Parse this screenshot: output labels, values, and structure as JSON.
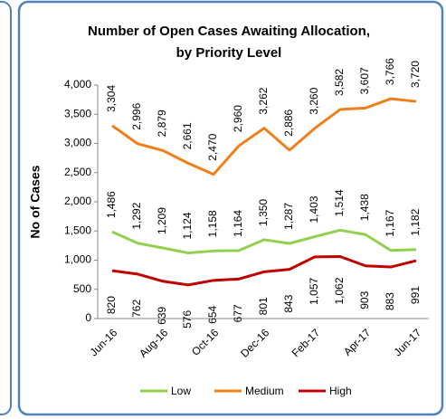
{
  "chart_data": {
    "type": "line",
    "title": [
      "Number of  Open Cases Awaiting Allocation,",
      "by Priority Level"
    ],
    "ylabel": "No of Cases",
    "categories": [
      "Jun-16",
      null,
      "Aug-16",
      null,
      "Oct-16",
      null,
      "Dec-16",
      null,
      "Feb-17",
      null,
      "Apr-17",
      null,
      "Jun-17"
    ],
    "series": [
      {
        "name": "Low",
        "color": "#92d050",
        "values": [
          1486,
          1292,
          1209,
          1124,
          1158,
          1164,
          1350,
          1287,
          1403,
          1514,
          1438,
          1167,
          1182
        ],
        "value_labels": [
          "1,486",
          "1,292",
          "1,209",
          "1,124",
          "1,158",
          "1,164",
          "1,350",
          "1,287",
          "1,403",
          "1,514",
          "1,438",
          "1,167",
          "1,182"
        ]
      },
      {
        "name": "Medium",
        "color": "#f07f1a",
        "values": [
          3304,
          2996,
          2879,
          2661,
          2470,
          2960,
          3262,
          2886,
          3260,
          3582,
          3607,
          3766,
          3720
        ],
        "value_labels": [
          "3,304",
          "2,996",
          "2,879",
          "2,661",
          "2,470",
          "2,960",
          "3,262",
          "2,886",
          "3,260",
          "3,582",
          "3,607",
          "3,766",
          "3,720"
        ]
      },
      {
        "name": "High",
        "color": "#c00000",
        "values": [
          820,
          762,
          639,
          576,
          654,
          677,
          801,
          843,
          1057,
          1062,
          903,
          883,
          991
        ],
        "value_labels": [
          "820",
          "762",
          "639",
          "576",
          "654",
          "677",
          "801",
          "843",
          "1,057",
          "1,062",
          "903",
          "883",
          "991"
        ]
      }
    ],
    "ylim": [
      0,
      4000
    ],
    "yticks": [
      0,
      500,
      {
        "value": 1000,
        "label": "1,000"
      },
      {
        "value": 1500,
        "label": "1,500"
      },
      {
        "value": 2000,
        "label": "2,000"
      },
      {
        "value": 2500,
        "label": "2,500"
      },
      {
        "value": 3000,
        "label": "3,000"
      },
      {
        "value": 3500,
        "label": "3,500"
      },
      {
        "value": 4000,
        "label": "4,000"
      }
    ],
    "grid": false,
    "legend": "bottom"
  }
}
